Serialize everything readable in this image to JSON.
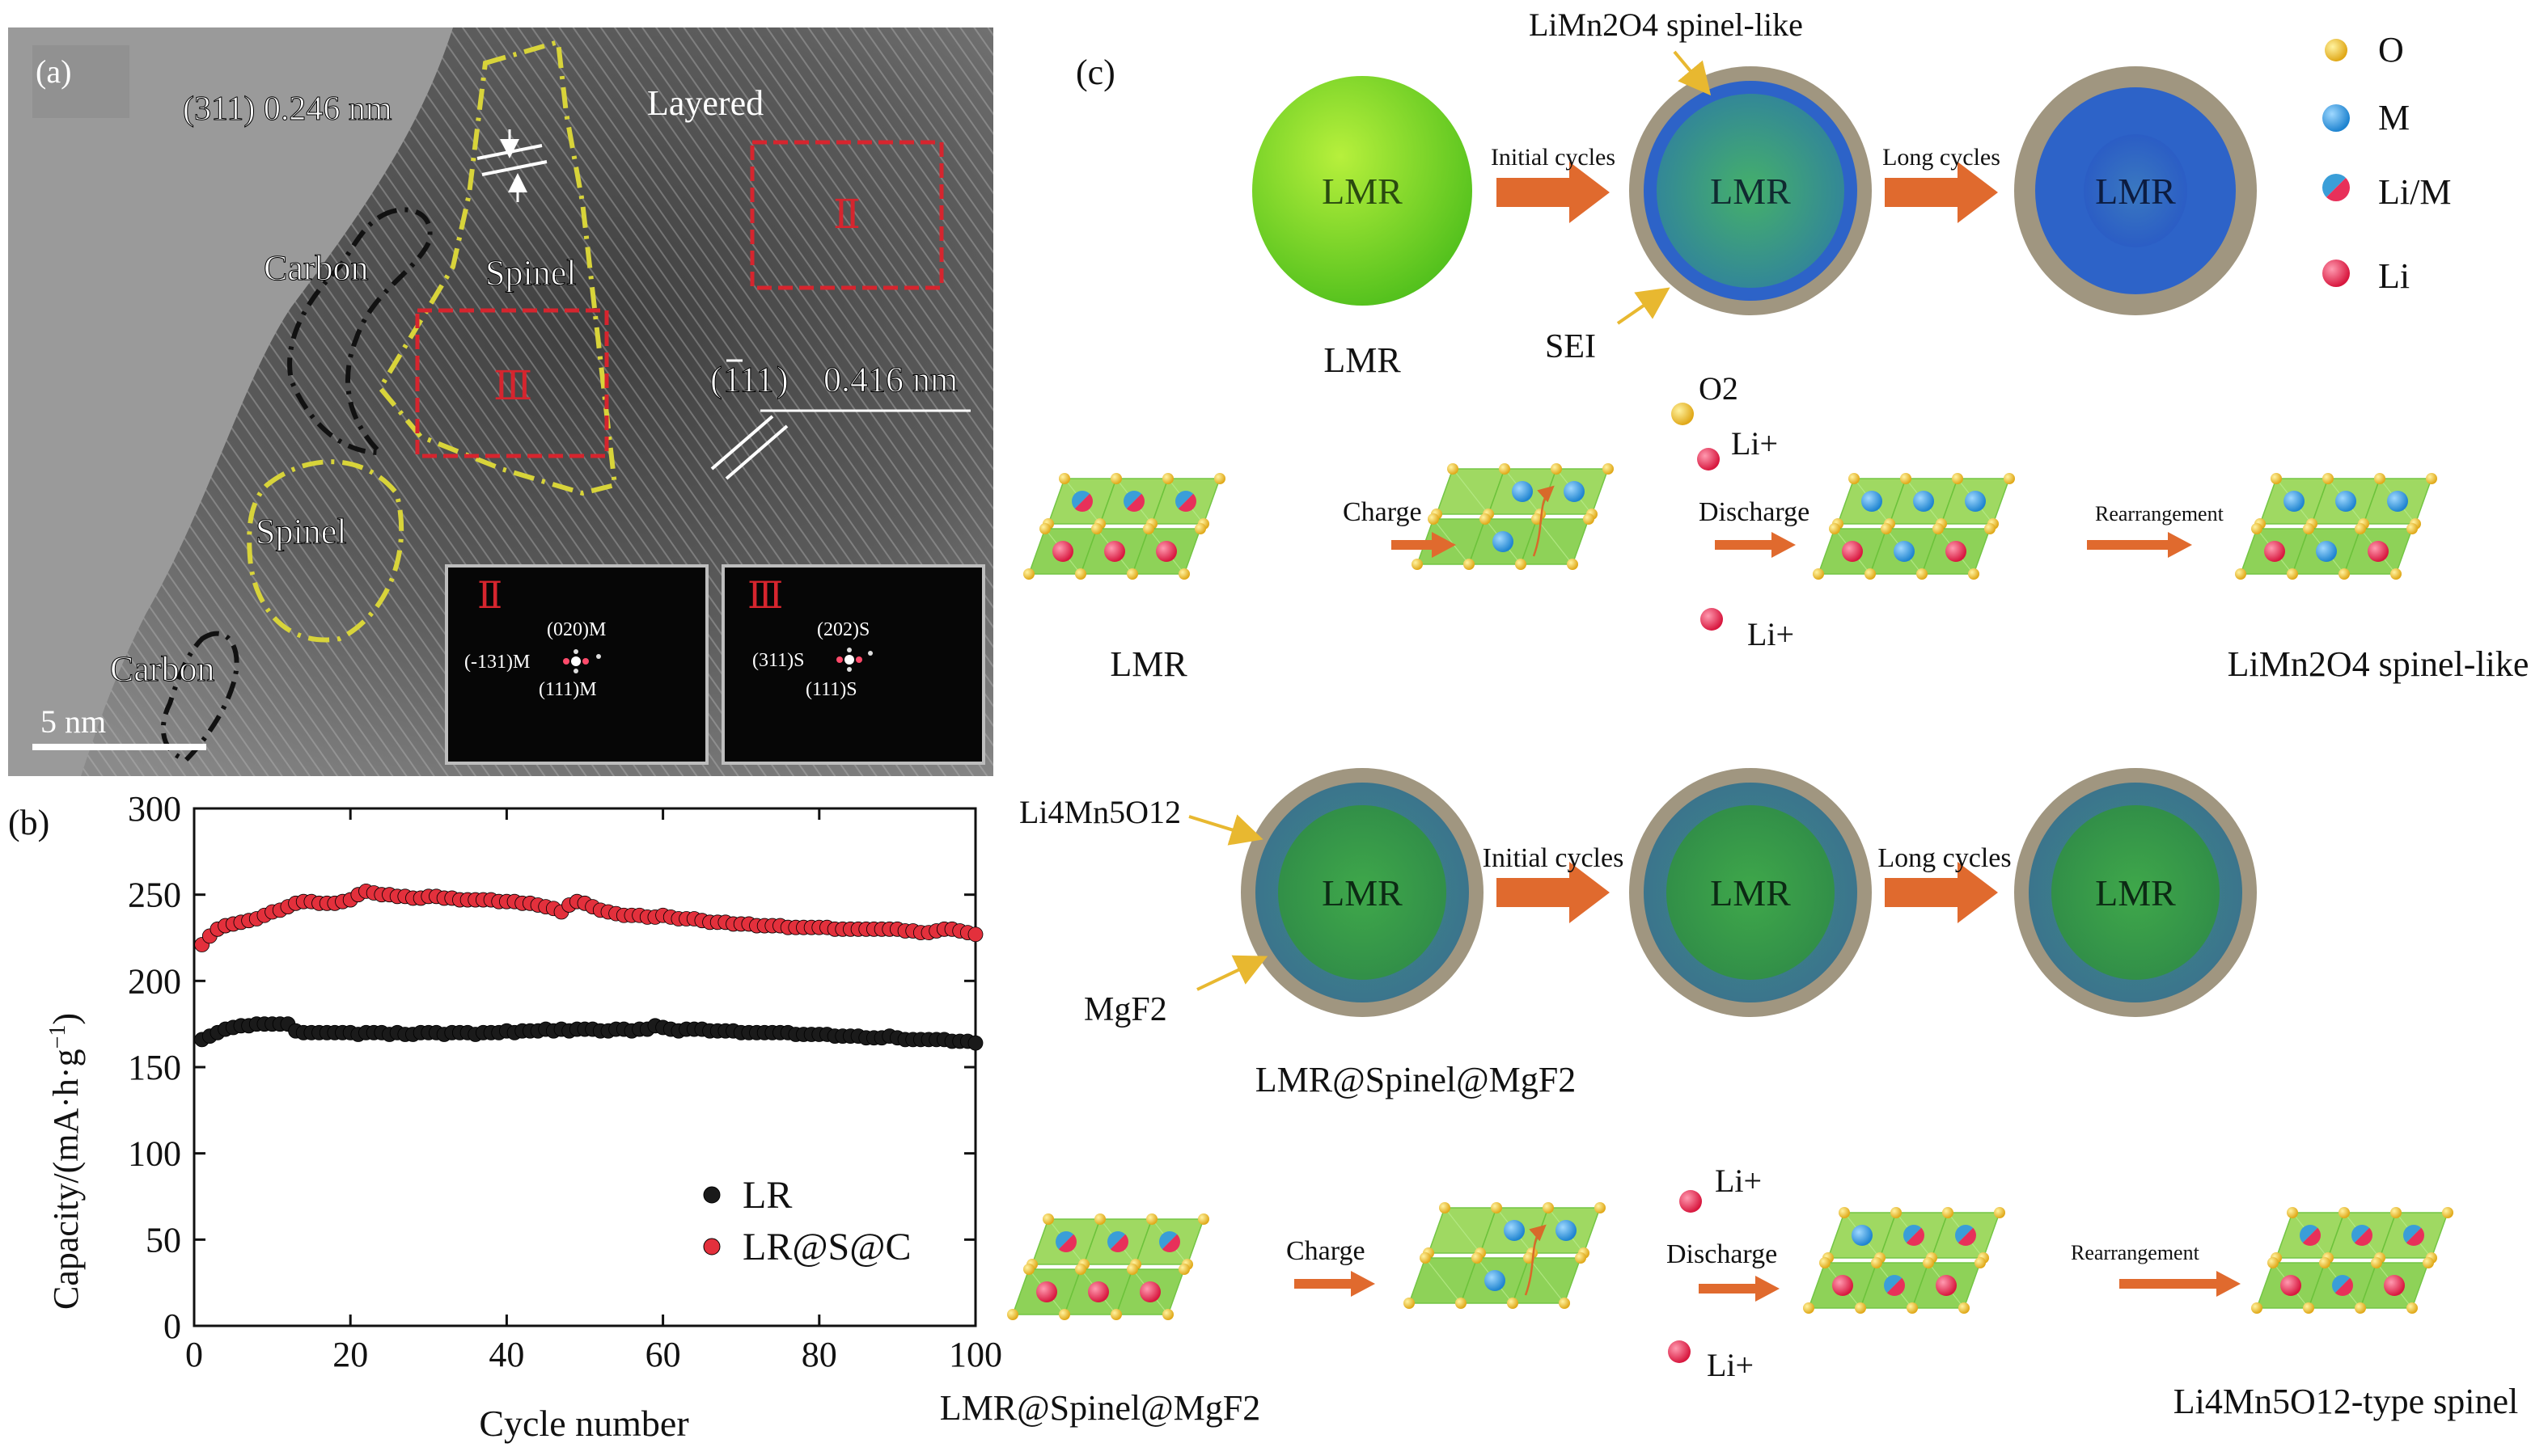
{
  "panel_a": {
    "panel_label": "(a)",
    "lattice_311": "(311)  0.246 nm",
    "lattice_111_index": "111",
    "lattice_111_paren_open": "(",
    "lattice_111_paren_close": ")",
    "lattice_111_dspacing": "0.416 nm",
    "region_layered": "Layered",
    "region_carbon_top": "Carbon",
    "region_spinel_top": "Spinel",
    "region_spinel_bottom": "Spinel",
    "region_carbon_bottom": "Carbon",
    "roi_II": "Ⅱ",
    "roi_III": "Ⅲ",
    "scale_bar": "5 nm",
    "inset_II": {
      "label": "Ⅱ",
      "spot_top": "(020)M",
      "spot_left": "(-131)M",
      "spot_bottom": "(111)M"
    },
    "inset_III": {
      "label": "Ⅲ",
      "spot_top": "(202)S",
      "spot_left": "(311)S",
      "spot_bottom": "(111)S"
    },
    "colors": {
      "dash_yellow": "#d8d43a",
      "dash_black": "#111111",
      "roi_red": "#d6252e"
    }
  },
  "panel_b": {
    "panel_label": "(b)",
    "ylabel_main": "Capacity/(mA·h·g",
    "ylabel_sup": "−1",
    "ylabel_end": ")"
  },
  "chart_data": {
    "type": "scatter",
    "xlabel": "Cycle number",
    "ylabel": "Capacity/(mA·h·g−1)",
    "xlim": [
      0,
      100
    ],
    "ylim": [
      0,
      300
    ],
    "xticks": [
      "0",
      "20",
      "40",
      "60",
      "80",
      "100"
    ],
    "yticks": [
      "0",
      "50",
      "100",
      "150",
      "200",
      "250",
      "300"
    ],
    "legend_position": "bottom-right",
    "series": [
      {
        "name": "LR",
        "color": "#1a1a1a",
        "x": [
          1,
          2,
          3,
          4,
          5,
          6,
          7,
          8,
          9,
          10,
          11,
          12,
          13,
          14,
          15,
          16,
          17,
          18,
          19,
          20,
          21,
          22,
          23,
          24,
          25,
          26,
          27,
          28,
          29,
          30,
          31,
          32,
          33,
          34,
          35,
          36,
          37,
          38,
          39,
          40,
          41,
          42,
          43,
          44,
          45,
          46,
          47,
          48,
          49,
          50,
          51,
          52,
          53,
          54,
          55,
          56,
          57,
          58,
          59,
          60,
          61,
          62,
          63,
          64,
          65,
          66,
          67,
          68,
          69,
          70,
          71,
          72,
          73,
          74,
          75,
          76,
          77,
          78,
          79,
          80,
          81,
          82,
          83,
          84,
          85,
          86,
          87,
          88,
          89,
          90,
          91,
          92,
          93,
          94,
          95,
          96,
          97,
          98,
          99,
          100
        ],
        "y": [
          166,
          168,
          170,
          172,
          173,
          174,
          174,
          175,
          175,
          175,
          175,
          175,
          171,
          170,
          170,
          170,
          170,
          170,
          170,
          170,
          169,
          170,
          170,
          170,
          169,
          170,
          169,
          169,
          170,
          170,
          170,
          169,
          170,
          170,
          170,
          169,
          170,
          170,
          170,
          171,
          170,
          171,
          171,
          171,
          172,
          171,
          172,
          171,
          172,
          172,
          172,
          171,
          171,
          172,
          172,
          171,
          172,
          172,
          174,
          173,
          172,
          171,
          172,
          172,
          172,
          171,
          171,
          171,
          171,
          170,
          170,
          170,
          170,
          170,
          170,
          170,
          169,
          169,
          169,
          169,
          169,
          168,
          168,
          168,
          168,
          167,
          167,
          167,
          168,
          167,
          166,
          166,
          166,
          166,
          166,
          166,
          165,
          165,
          165,
          164
        ]
      },
      {
        "name": "LR@S@C",
        "color": "#e3303c",
        "x": [
          1,
          2,
          3,
          4,
          5,
          6,
          7,
          8,
          9,
          10,
          11,
          12,
          13,
          14,
          15,
          16,
          17,
          18,
          19,
          20,
          21,
          22,
          23,
          24,
          25,
          26,
          27,
          28,
          29,
          30,
          31,
          32,
          33,
          34,
          35,
          36,
          37,
          38,
          39,
          40,
          41,
          42,
          43,
          44,
          45,
          46,
          47,
          48,
          49,
          50,
          51,
          52,
          53,
          54,
          55,
          56,
          57,
          58,
          59,
          60,
          61,
          62,
          63,
          64,
          65,
          66,
          67,
          68,
          69,
          70,
          71,
          72,
          73,
          74,
          75,
          76,
          77,
          78,
          79,
          80,
          81,
          82,
          83,
          84,
          85,
          86,
          87,
          88,
          89,
          90,
          91,
          92,
          93,
          94,
          95,
          96,
          97,
          98,
          99,
          100
        ],
        "y": [
          221,
          226,
          230,
          232,
          233,
          234,
          235,
          236,
          238,
          240,
          241,
          243,
          245,
          246,
          246,
          245,
          245,
          245,
          246,
          247,
          250,
          252,
          251,
          250,
          250,
          249,
          249,
          248,
          248,
          249,
          249,
          248,
          248,
          247,
          247,
          247,
          247,
          247,
          246,
          246,
          246,
          245,
          245,
          244,
          243,
          242,
          240,
          244,
          246,
          245,
          243,
          241,
          240,
          239,
          238,
          238,
          238,
          237,
          237,
          238,
          237,
          236,
          236,
          236,
          235,
          234,
          234,
          234,
          233,
          233,
          233,
          232,
          232,
          232,
          232,
          231,
          231,
          231,
          231,
          231,
          231,
          230,
          230,
          230,
          230,
          230,
          230,
          230,
          230,
          230,
          229,
          229,
          228,
          228,
          229,
          230,
          230,
          229,
          228,
          227
        ]
      }
    ]
  },
  "panel_c": {
    "panel_label": "(c)",
    "legend": [
      {
        "label": "O",
        "color": "#f0c030",
        "icon": "o-atom-icon"
      },
      {
        "label": "M",
        "color": "#3a9ed8",
        "icon": "m-atom-icon"
      },
      {
        "label": "Li/M",
        "color": "split",
        "icon": "li-m-atom-icon"
      },
      {
        "label": "Li",
        "color": "#e8305a",
        "icon": "li-atom-icon"
      }
    ],
    "row1": {
      "particle_label": "LMR",
      "caption_left": "LMR",
      "spinel_like": "LiMn2O4 spinel-like",
      "sei": "SEI",
      "arrow1": "Initial cycles",
      "arrow2": "Long cycles"
    },
    "row2": {
      "charge": "Charge",
      "discharge": "Discharge",
      "rearrangement": "Rearrangement",
      "o2": "O2",
      "li_plus_top": "Li+",
      "li_plus_bottom": "Li+",
      "caption_left": "LMR",
      "caption_right": "LiMn2O4 spinel-like"
    },
    "row3": {
      "particle_label": "LMR",
      "li4mn5o12": "Li4Mn5O12",
      "mgf2": "MgF2",
      "arrow1": "Initial cycles",
      "arrow2": "Long cycles",
      "caption": "LMR@Spinel@MgF2"
    },
    "row4": {
      "charge": "Charge",
      "discharge": "Discharge",
      "rearrangement": "Rearrangement",
      "li_plus_top": "Li+",
      "li_plus_bottom": "Li+",
      "caption_left": "LMR@Spinel@MgF2",
      "caption_right": "Li4Mn5O12-type spinel"
    },
    "colors": {
      "arrow": "#e06a2e",
      "green_fill": "#8fd850",
      "green_dark": "#5aa832",
      "shell": "#a09680",
      "blue_shell": "#2d63c8"
    }
  }
}
